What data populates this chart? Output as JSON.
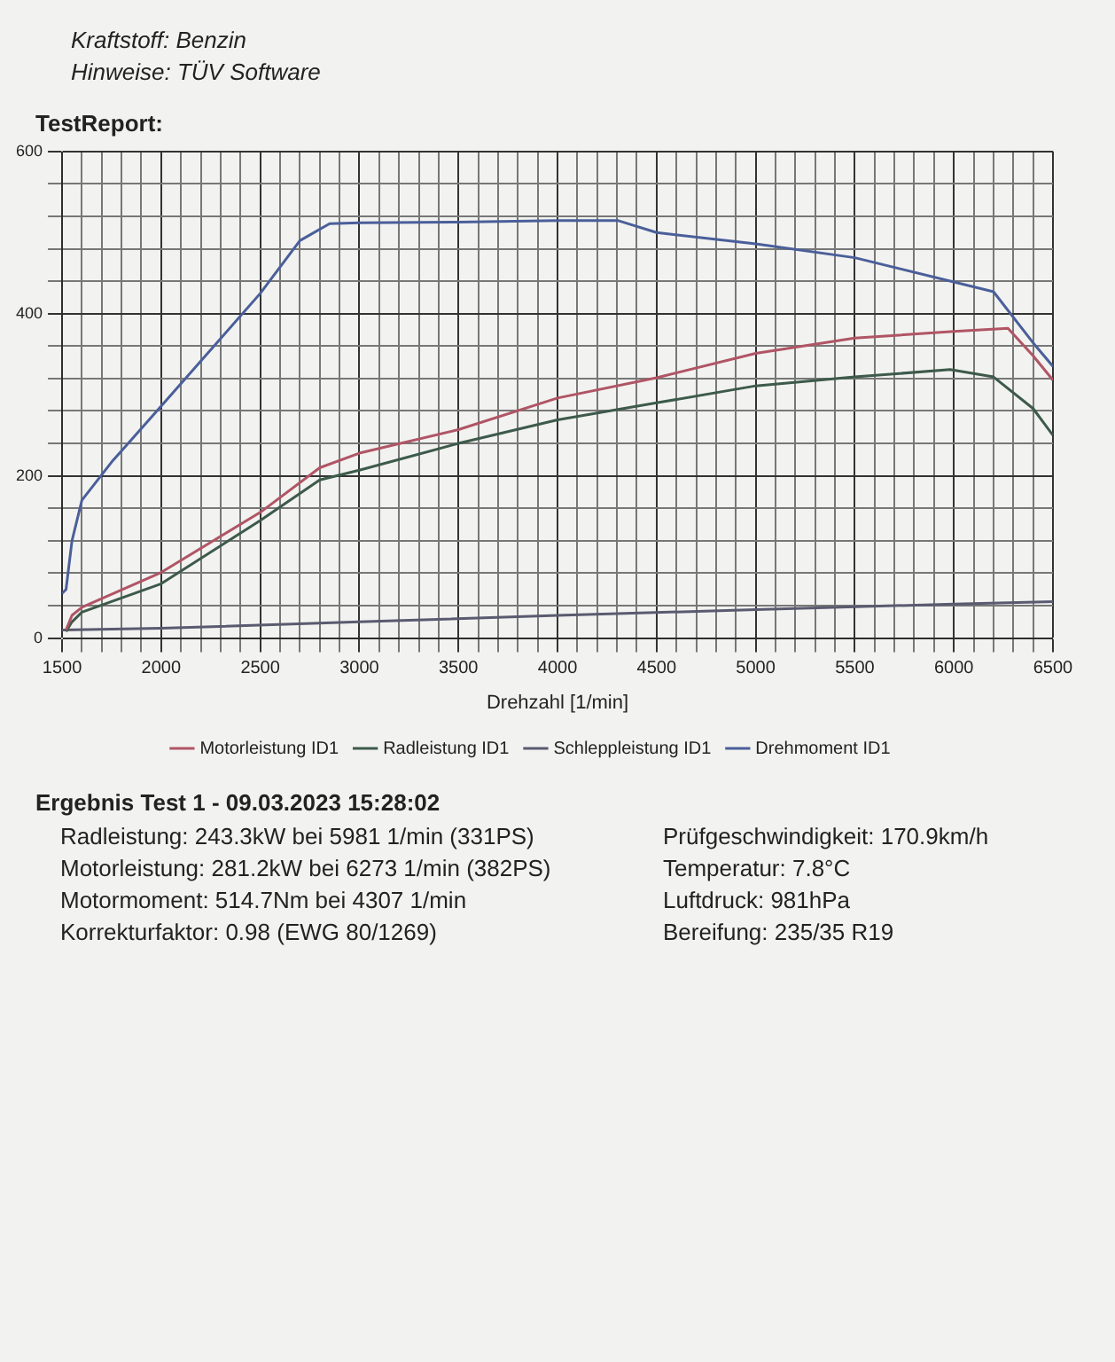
{
  "chart_data": {
    "type": "line",
    "title": "TestReport:",
    "xlabel": "Drehzahl [1/min]",
    "xlim": [
      1500,
      6500
    ],
    "xticks": [
      1500,
      {
        "value": 1600,
        "label": null
      },
      {
        "value": 1700,
        "label": null
      },
      {
        "value": 1800,
        "label": null
      },
      {
        "value": 1900,
        "label": null
      },
      2000,
      {
        "value": 2100,
        "label": null
      },
      {
        "value": 2200,
        "label": null
      },
      {
        "value": 2300,
        "label": null
      },
      {
        "value": 2400,
        "label": null
      },
      2500,
      {
        "value": 2600,
        "label": null
      },
      {
        "value": 2700,
        "label": null
      },
      {
        "value": 2800,
        "label": null
      },
      {
        "value": 2900,
        "label": null
      },
      3000,
      {
        "value": 3100,
        "label": null
      },
      {
        "value": 3200,
        "label": null
      },
      {
        "value": 3300,
        "label": null
      },
      {
        "value": 3400,
        "label": null
      },
      3500,
      {
        "value": 3600,
        "label": null
      },
      {
        "value": 3700,
        "label": null
      },
      {
        "value": 3800,
        "label": null
      },
      {
        "value": 3900,
        "label": null
      },
      4000,
      {
        "value": 4100,
        "label": null
      },
      {
        "value": 4200,
        "label": null
      },
      {
        "value": 4300,
        "label": null
      },
      {
        "value": 4400,
        "label": null
      },
      4500,
      {
        "value": 4600,
        "label": null
      },
      {
        "value": 4700,
        "label": null
      },
      {
        "value": 4800,
        "label": null
      },
      {
        "value": 4900,
        "label": null
      },
      5000,
      {
        "value": 5100,
        "label": null
      },
      {
        "value": 5200,
        "label": null
      },
      {
        "value": 5300,
        "label": null
      },
      {
        "value": 5400,
        "label": null
      },
      5500,
      {
        "value": 5600,
        "label": null
      },
      {
        "value": 5700,
        "label": null
      },
      {
        "value": 5800,
        "label": null
      },
      {
        "value": 5900,
        "label": null
      },
      6000,
      {
        "value": 6100,
        "label": null
      },
      {
        "value": 6200,
        "label": null
      },
      {
        "value": 6300,
        "label": null
      },
      {
        "value": 6400,
        "label": null
      },
      6500
    ],
    "ylim": [
      0,
      600
    ],
    "yticks": [
      0,
      {
        "value": 40,
        "label": null
      },
      {
        "value": 80,
        "label": null
      },
      {
        "value": 120,
        "label": null
      },
      {
        "value": 160,
        "label": null
      },
      200,
      {
        "value": 240,
        "label": null
      },
      {
        "value": 280,
        "label": null
      },
      {
        "value": 320,
        "label": null
      },
      {
        "value": 360,
        "label": null
      },
      400,
      {
        "value": 440,
        "label": null
      },
      {
        "value": 480,
        "label": null
      },
      {
        "value": 520,
        "label": null
      },
      {
        "value": 560,
        "label": null
      },
      600
    ],
    "grid": true,
    "legend": "bottom",
    "marker": "none",
    "line_style": "solid",
    "series": [
      {
        "name": "Motorleistung ID1",
        "color": "#b05565",
        "x": [
          1520,
          1550,
          1600,
          2000,
          2500,
          2800,
          3000,
          3500,
          4000,
          4500,
          5000,
          5500,
          6000,
          6273,
          6400,
          6500
        ],
        "values": [
          10,
          28,
          38,
          81,
          155,
          210,
          228,
          257,
          296,
          321,
          351,
          370,
          378,
          382,
          348,
          318
        ]
      },
      {
        "name": "Radleistung ID1",
        "color": "#3d5a4a",
        "x": [
          1520,
          1550,
          1600,
          2000,
          2500,
          2800,
          3000,
          3500,
          4000,
          4500,
          5000,
          5500,
          5981,
          6200,
          6400,
          6500
        ],
        "values": [
          8,
          20,
          32,
          67,
          145,
          195,
          207,
          240,
          269,
          290,
          311,
          322,
          331,
          322,
          283,
          250
        ]
      },
      {
        "name": "Schleppleistung ID1",
        "color": "#5a5a70",
        "x": [
          1500,
          2000,
          3000,
          4000,
          5000,
          6000,
          6500
        ],
        "values": [
          10,
          12,
          20,
          28,
          35,
          42,
          45
        ]
      },
      {
        "name": "Drehmoment ID1",
        "color": "#4a5f9a",
        "x": [
          1500,
          1520,
          1550,
          1600,
          1750,
          2000,
          2500,
          2700,
          2850,
          3000,
          3500,
          4000,
          4307,
          4500,
          5000,
          5500,
          6000,
          6200,
          6400,
          6500
        ],
        "values": [
          55,
          60,
          120,
          170,
          217,
          286,
          425,
          490,
          511,
          512,
          513,
          514.7,
          514.7,
          500,
          486,
          469,
          439,
          427,
          364,
          335
        ]
      }
    ],
    "annotations": [
      "Kraftstoff: Benzin",
      "Hinweise: TÜV Software",
      "Ergebnis Test 1 - 09.03.2023 15:28:02",
      "Radleistung: 243.3kW bei 5981 1/min (331PS)",
      "Prüfgeschwindigkeit: 170.9km/h",
      "Motorleistung: 281.2kW bei 6273 1/min (382PS)",
      "Temperatur: 7.8°C",
      "Motormoment: 514.7Nm bei 4307 1/min",
      "Luftdruck: 981hPa",
      "Korrekturfaktor: 0.98 (EWG 80/1269)",
      "Bereifung: 235/35 R19"
    ]
  }
}
